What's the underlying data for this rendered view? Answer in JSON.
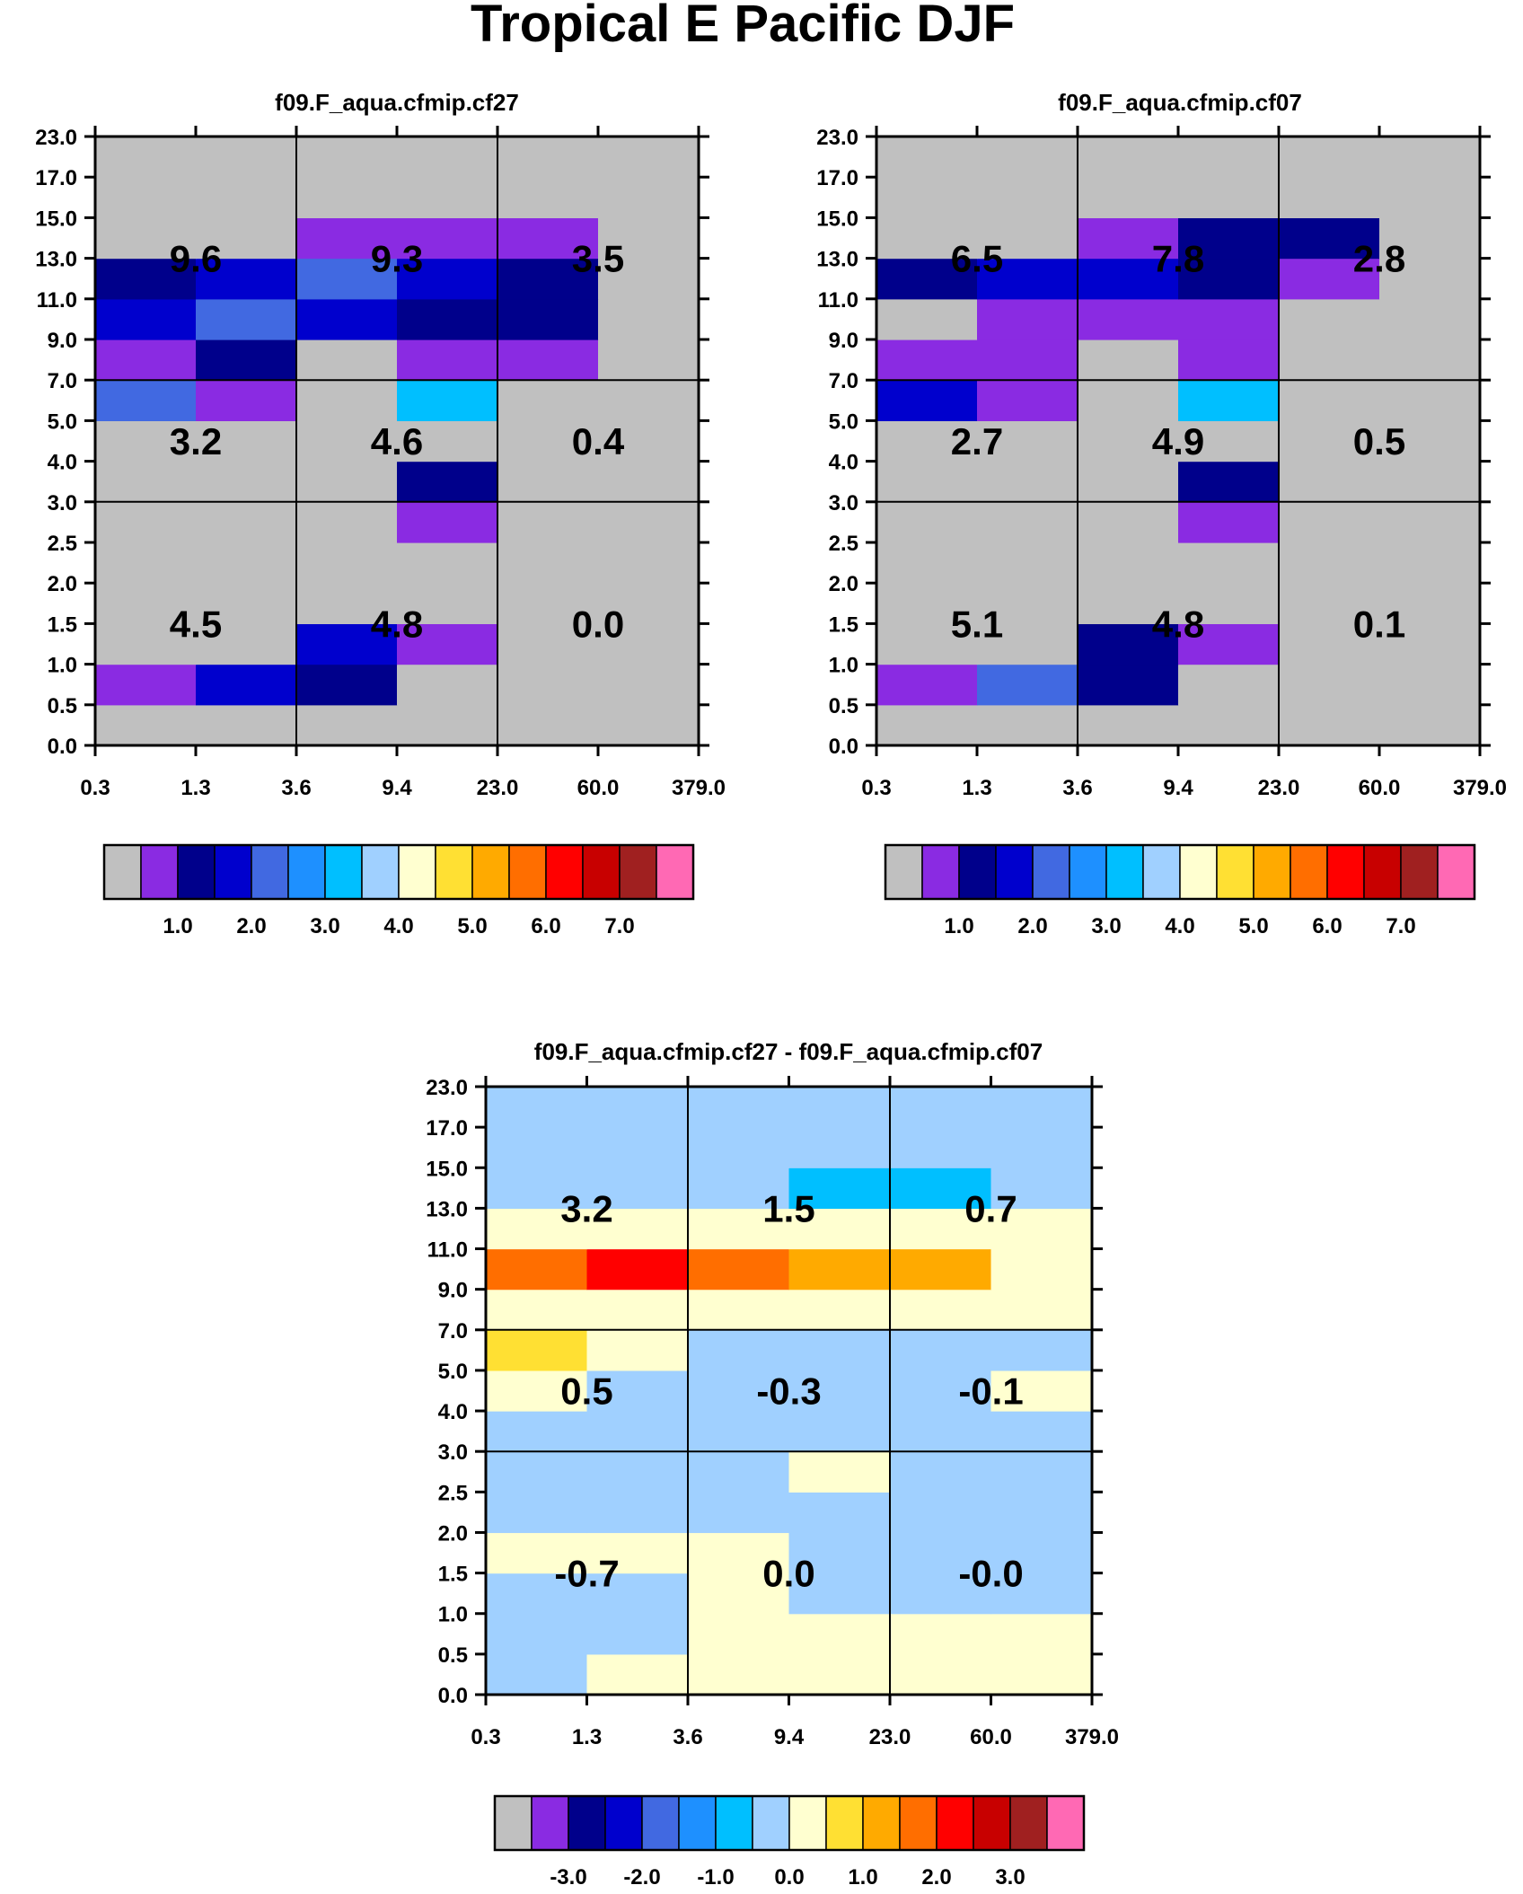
{
  "title": "Tropical E Pacific DJF",
  "x_ticks": [
    "0.3",
    "1.3",
    "3.6",
    "9.4",
    "23.0",
    "60.0",
    "379.0"
  ],
  "y_ticks": [
    "0.0",
    "0.5",
    "1.0",
    "1.5",
    "2.0",
    "2.5",
    "3.0",
    "4.0",
    "5.0",
    "7.0",
    "9.0",
    "11.0",
    "13.0",
    "15.0",
    "17.0",
    "23.0"
  ],
  "chart_data": [
    {
      "type": "heatmap",
      "title": "f09.F_aqua.cfmip.cf27",
      "x_bin_edges": [
        "0.3",
        "1.3",
        "3.6",
        "9.4",
        "23.0",
        "60.0",
        "379.0"
      ],
      "y_bin_edges": [
        "0.0",
        "0.5",
        "1.0",
        "1.5",
        "2.0",
        "2.5",
        "3.0",
        "4.0",
        "5.0",
        "7.0",
        "9.0",
        "11.0",
        "13.0",
        "15.0",
        "17.0",
        "23.0"
      ],
      "grid_note": "rows listed from bottom (0.0-0.5) to top (17.0-23.0); values are color-class indices 0..15 of the colorbar",
      "grid": [
        [
          0,
          0,
          0,
          0,
          0,
          0
        ],
        [
          1,
          3,
          2,
          0,
          0,
          0
        ],
        [
          0,
          0,
          3,
          1,
          0,
          0
        ],
        [
          0,
          0,
          0,
          0,
          0,
          0
        ],
        [
          0,
          0,
          0,
          0,
          0,
          0
        ],
        [
          0,
          0,
          0,
          1,
          0,
          0
        ],
        [
          0,
          0,
          0,
          2,
          0,
          0
        ],
        [
          0,
          0,
          0,
          0,
          0,
          0
        ],
        [
          4,
          1,
          0,
          6,
          0,
          0
        ],
        [
          1,
          2,
          0,
          1,
          1,
          0
        ],
        [
          3,
          4,
          3,
          2,
          2,
          0
        ],
        [
          2,
          3,
          4,
          3,
          2,
          0
        ],
        [
          0,
          0,
          1,
          1,
          1,
          0
        ],
        [
          0,
          0,
          0,
          0,
          0,
          0
        ],
        [
          0,
          0,
          0,
          0,
          0,
          0
        ]
      ],
      "annotations": [
        {
          "row": "top",
          "values": [
            "9.6",
            "9.3",
            "3.5"
          ]
        },
        {
          "row": "middle",
          "values": [
            "3.2",
            "4.6",
            "0.4"
          ]
        },
        {
          "row": "bottom",
          "values": [
            "4.5",
            "4.8",
            "0.0"
          ]
        }
      ],
      "colorbar": {
        "labels": [
          "1.0",
          "2.0",
          "3.0",
          "4.0",
          "5.0",
          "6.0",
          "7.0"
        ]
      }
    },
    {
      "type": "heatmap",
      "title": "f09.F_aqua.cfmip.cf07",
      "x_bin_edges": [
        "0.3",
        "1.3",
        "3.6",
        "9.4",
        "23.0",
        "60.0",
        "379.0"
      ],
      "y_bin_edges": [
        "0.0",
        "0.5",
        "1.0",
        "1.5",
        "2.0",
        "2.5",
        "3.0",
        "4.0",
        "5.0",
        "7.0",
        "9.0",
        "11.0",
        "13.0",
        "15.0",
        "17.0",
        "23.0"
      ],
      "grid_note": "rows listed from bottom (0.0-0.5) to top (17.0-23.0); values are color-class indices 0..15 of the colorbar",
      "grid": [
        [
          0,
          0,
          0,
          0,
          0,
          0
        ],
        [
          1,
          4,
          2,
          0,
          0,
          0
        ],
        [
          0,
          0,
          2,
          1,
          0,
          0
        ],
        [
          0,
          0,
          0,
          0,
          0,
          0
        ],
        [
          0,
          0,
          0,
          0,
          0,
          0
        ],
        [
          0,
          0,
          0,
          1,
          0,
          0
        ],
        [
          0,
          0,
          0,
          2,
          0,
          0
        ],
        [
          0,
          0,
          0,
          0,
          0,
          0
        ],
        [
          3,
          1,
          0,
          6,
          0,
          0
        ],
        [
          1,
          1,
          0,
          1,
          0,
          0
        ],
        [
          0,
          1,
          1,
          1,
          0,
          0
        ],
        [
          2,
          3,
          3,
          2,
          1,
          0
        ],
        [
          0,
          0,
          1,
          2,
          2,
          0
        ],
        [
          0,
          0,
          0,
          0,
          0,
          0
        ],
        [
          0,
          0,
          0,
          0,
          0,
          0
        ]
      ],
      "annotations": [
        {
          "row": "top",
          "values": [
            "6.5",
            "7.8",
            "2.8"
          ]
        },
        {
          "row": "middle",
          "values": [
            "2.7",
            "4.9",
            "0.5"
          ]
        },
        {
          "row": "bottom",
          "values": [
            "5.1",
            "4.8",
            "0.1"
          ]
        }
      ],
      "colorbar": {
        "labels": [
          "1.0",
          "2.0",
          "3.0",
          "4.0",
          "5.0",
          "6.0",
          "7.0"
        ]
      }
    },
    {
      "type": "heatmap",
      "title": "f09.F_aqua.cfmip.cf27 - f09.F_aqua.cfmip.cf07",
      "x_bin_edges": [
        "0.3",
        "1.3",
        "3.6",
        "9.4",
        "23.0",
        "60.0",
        "379.0"
      ],
      "y_bin_edges": [
        "0.0",
        "0.5",
        "1.0",
        "1.5",
        "2.0",
        "2.5",
        "3.0",
        "4.0",
        "5.0",
        "7.0",
        "9.0",
        "11.0",
        "13.0",
        "15.0",
        "17.0",
        "23.0"
      ],
      "grid_note": "rows listed from bottom (0.0-0.5) to top (17.0-23.0); values are color-class indices 0..15 of the colorbar",
      "grid": [
        [
          7,
          8,
          8,
          8,
          8,
          8
        ],
        [
          7,
          7,
          8,
          8,
          8,
          8
        ],
        [
          7,
          7,
          8,
          7,
          7,
          7
        ],
        [
          8,
          8,
          8,
          7,
          7,
          7
        ],
        [
          7,
          7,
          7,
          7,
          7,
          7
        ],
        [
          7,
          7,
          7,
          8,
          7,
          7
        ],
        [
          7,
          7,
          7,
          7,
          7,
          7
        ],
        [
          8,
          7,
          7,
          7,
          7,
          8
        ],
        [
          9,
          8,
          7,
          7,
          7,
          7
        ],
        [
          8,
          8,
          8,
          8,
          8,
          8
        ],
        [
          11,
          12,
          11,
          10,
          10,
          8
        ],
        [
          8,
          8,
          8,
          8,
          8,
          8
        ],
        [
          7,
          7,
          7,
          6,
          6,
          7
        ],
        [
          7,
          7,
          7,
          7,
          7,
          7
        ],
        [
          7,
          7,
          7,
          7,
          7,
          7
        ]
      ],
      "annotations": [
        {
          "row": "top",
          "values": [
            "3.2",
            "1.5",
            "0.7"
          ]
        },
        {
          "row": "middle",
          "values": [
            "0.5",
            "-0.3",
            "-0.1"
          ]
        },
        {
          "row": "bottom",
          "values": [
            "-0.7",
            "0.0",
            "-0.0"
          ]
        }
      ],
      "colorbar": {
        "labels": [
          "-3.0",
          "-2.0",
          "-1.0",
          "0.0",
          "1.0",
          "2.0",
          "3.0"
        ]
      }
    }
  ],
  "palette": [
    "#c0c0c0",
    "#8a2be2",
    "#00008b",
    "#0000cd",
    "#4169e1",
    "#1e90ff",
    "#00bfff",
    "#a0d0ff",
    "#ffffd0",
    "#ffe033",
    "#ffaa00",
    "#ff6e00",
    "#ff0000",
    "#c80000",
    "#a02020",
    "#ff69b4"
  ]
}
